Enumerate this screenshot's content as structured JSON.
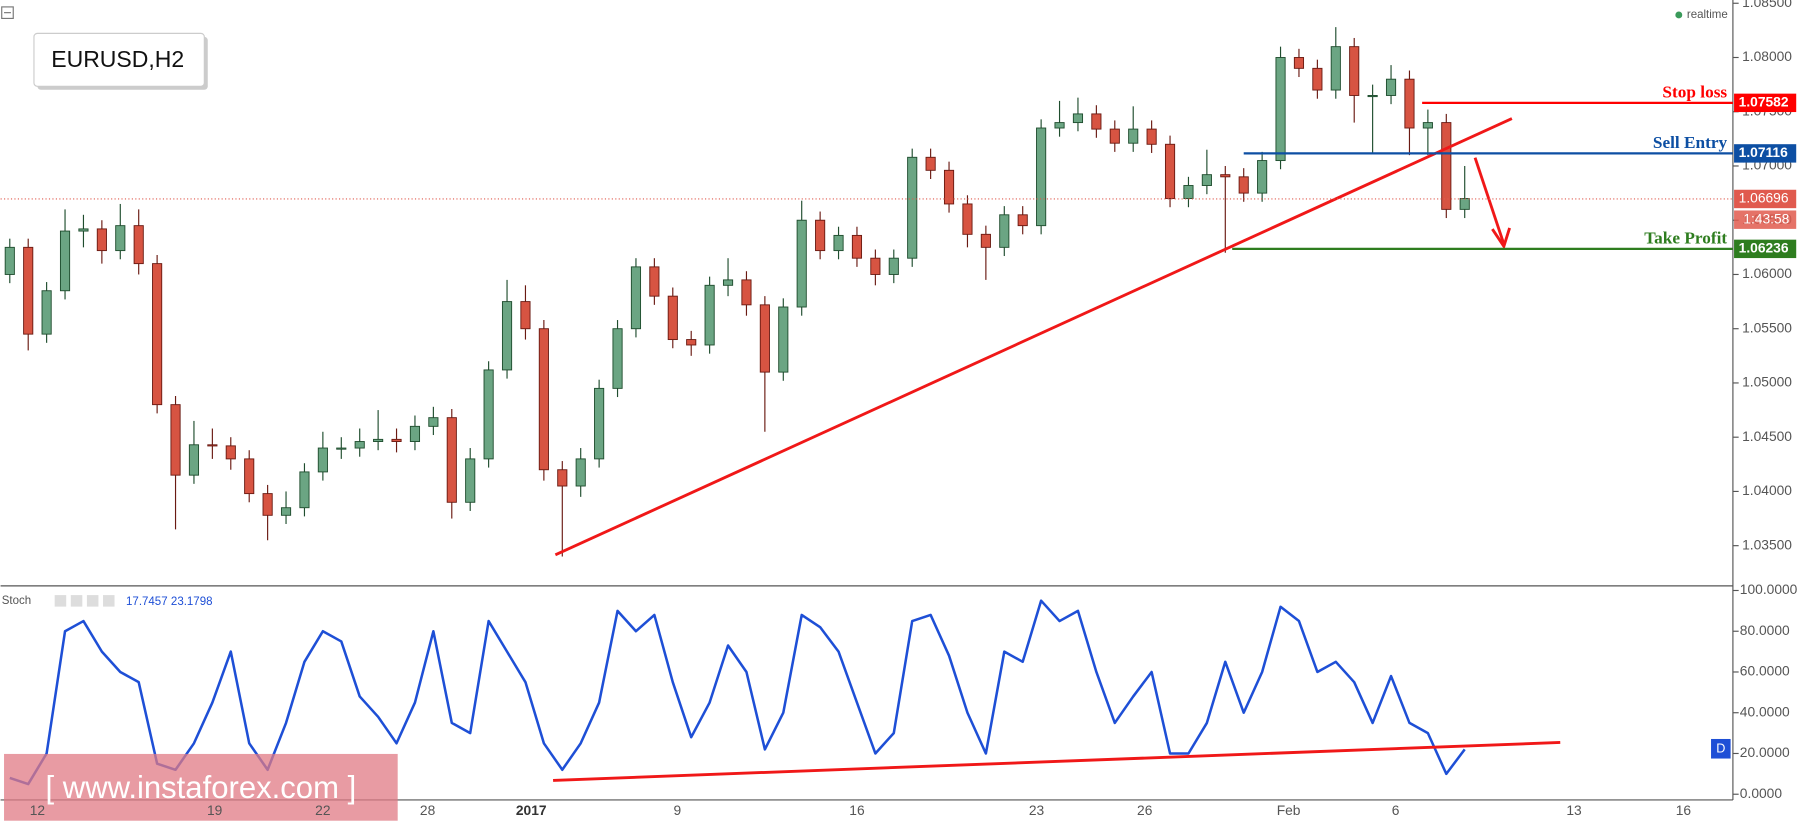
{
  "header": {
    "symbol": "EURUSD,H2",
    "status": "realtime"
  },
  "watermark": "[ www.instaforex.com ]",
  "chart_data": [
    {
      "type": "candlestick",
      "up_color": "#6ba583",
      "down_color": "#d75442",
      "ylim": [
        1.0314,
        1.0853
      ],
      "yticks": [
        {
          "value": 1.035,
          "label": "1.03500"
        },
        {
          "value": 1.04,
          "label": "1.04000"
        },
        {
          "value": 1.045,
          "label": "1.04500"
        },
        {
          "value": 1.05,
          "label": "1.05000"
        },
        {
          "value": 1.055,
          "label": "1.05500"
        },
        {
          "value": 1.06,
          "label": "1.06000"
        },
        {
          "value": 1.065,
          "label": "1.06500"
        },
        {
          "value": 1.07,
          "label": "1.07000"
        },
        {
          "value": 1.075,
          "label": "1.07500"
        },
        {
          "value": 1.08,
          "label": "1.08000"
        },
        {
          "value": 1.085,
          "label": "1.08500"
        }
      ],
      "xlabels": [
        "12",
        "19",
        "22",
        "28",
        "2017",
        "9",
        "16",
        "23",
        "26",
        "Feb",
        "6",
        "13",
        "16"
      ],
      "candles": [
        [
          1.06,
          1.0633,
          1.0592,
          1.0625
        ],
        [
          1.0625,
          1.0633,
          1.053,
          1.0545
        ],
        [
          1.0545,
          1.0593,
          1.0537,
          1.0585
        ],
        [
          1.0585,
          1.066,
          1.0577,
          1.064
        ],
        [
          1.064,
          1.0655,
          1.0625,
          1.0642
        ],
        [
          1.0642,
          1.065,
          1.061,
          1.0622
        ],
        [
          1.0622,
          1.0665,
          1.0614,
          1.0645
        ],
        [
          1.0645,
          1.066,
          1.06,
          1.061
        ],
        [
          1.061,
          1.0618,
          1.0472,
          1.048
        ],
        [
          1.048,
          1.0488,
          1.0365,
          1.0415
        ],
        [
          1.0415,
          1.0465,
          1.0407,
          1.0443
        ],
        [
          1.0443,
          1.0458,
          1.043,
          1.0442
        ],
        [
          1.0442,
          1.045,
          1.042,
          1.043
        ],
        [
          1.043,
          1.0438,
          1.039,
          1.0398
        ],
        [
          1.0398,
          1.0406,
          1.0355,
          1.0378
        ],
        [
          1.0378,
          1.04,
          1.037,
          1.0385
        ],
        [
          1.0385,
          1.0426,
          1.0377,
          1.0418
        ],
        [
          1.0418,
          1.0455,
          1.041,
          1.044
        ],
        [
          1.044,
          1.045,
          1.043,
          1.044
        ],
        [
          1.044,
          1.0458,
          1.0432,
          1.0446
        ],
        [
          1.0446,
          1.0475,
          1.0438,
          1.0448
        ],
        [
          1.0448,
          1.0458,
          1.0436,
          1.0446
        ],
        [
          1.0446,
          1.047,
          1.0438,
          1.046
        ],
        [
          1.046,
          1.0478,
          1.0452,
          1.0468
        ],
        [
          1.0468,
          1.0476,
          1.0375,
          1.039
        ],
        [
          1.039,
          1.044,
          1.0382,
          1.043
        ],
        [
          1.043,
          1.052,
          1.0422,
          1.0512
        ],
        [
          1.0512,
          1.0595,
          1.0504,
          1.0575
        ],
        [
          1.0575,
          1.059,
          1.054,
          1.055
        ],
        [
          1.055,
          1.0558,
          1.041,
          1.042
        ],
        [
          1.042,
          1.0428,
          1.034,
          1.0405
        ],
        [
          1.0405,
          1.044,
          1.0395,
          1.043
        ],
        [
          1.043,
          1.0503,
          1.0422,
          1.0495
        ],
        [
          1.0495,
          1.0558,
          1.0487,
          1.055
        ],
        [
          1.055,
          1.0615,
          1.0542,
          1.0607
        ],
        [
          1.0607,
          1.0615,
          1.0572,
          1.058
        ],
        [
          1.058,
          1.0588,
          1.0532,
          1.054
        ],
        [
          1.054,
          1.0548,
          1.0525,
          1.0535
        ],
        [
          1.0535,
          1.0598,
          1.0527,
          1.059
        ],
        [
          1.059,
          1.0615,
          1.058,
          1.0595
        ],
        [
          1.0595,
          1.0603,
          1.0562,
          1.0572
        ],
        [
          1.0572,
          1.058,
          1.0455,
          1.051
        ],
        [
          1.051,
          1.0578,
          1.0502,
          1.057
        ],
        [
          1.057,
          1.0668,
          1.0562,
          1.065
        ],
        [
          1.065,
          1.0658,
          1.0614,
          1.0622
        ],
        [
          1.0622,
          1.0644,
          1.0614,
          1.0636
        ],
        [
          1.0636,
          1.0644,
          1.0607,
          1.0615
        ],
        [
          1.0615,
          1.0623,
          1.059,
          1.06
        ],
        [
          1.06,
          1.0623,
          1.0592,
          1.0615
        ],
        [
          1.0615,
          1.0716,
          1.0607,
          1.0708
        ],
        [
          1.0708,
          1.0716,
          1.0688,
          1.0696
        ],
        [
          1.0696,
          1.0704,
          1.0657,
          1.0665
        ],
        [
          1.0665,
          1.0673,
          1.0625,
          1.0637
        ],
        [
          1.0637,
          1.0645,
          1.0595,
          1.0625
        ],
        [
          1.0625,
          1.0663,
          1.0617,
          1.0655
        ],
        [
          1.0655,
          1.0663,
          1.0637,
          1.0645
        ],
        [
          1.0645,
          1.0743,
          1.0637,
          1.0735
        ],
        [
          1.0735,
          1.076,
          1.0727,
          1.074
        ],
        [
          1.074,
          1.0763,
          1.0732,
          1.0748
        ],
        [
          1.0748,
          1.0756,
          1.0726,
          1.0734
        ],
        [
          1.0734,
          1.0742,
          1.0713,
          1.0721
        ],
        [
          1.0721,
          1.0755,
          1.0713,
          1.0734
        ],
        [
          1.0734,
          1.0742,
          1.0712,
          1.072
        ],
        [
          1.072,
          1.0728,
          1.0662,
          1.067
        ],
        [
          1.067,
          1.069,
          1.0662,
          1.0682
        ],
        [
          1.0682,
          1.0715,
          1.0674,
          1.0692
        ],
        [
          1.0692,
          1.07,
          1.062,
          1.069
        ],
        [
          1.069,
          1.0698,
          1.0667,
          1.0675
        ],
        [
          1.0675,
          1.0713,
          1.0667,
          1.0705
        ],
        [
          1.0705,
          1.081,
          1.0697,
          1.08
        ],
        [
          1.08,
          1.0808,
          1.0782,
          1.079
        ],
        [
          1.079,
          1.0798,
          1.0762,
          1.077
        ],
        [
          1.077,
          1.0828,
          1.0762,
          1.081
        ],
        [
          1.081,
          1.0818,
          1.074,
          1.0765
        ],
        [
          1.0765,
          1.0775,
          1.0712,
          1.0765
        ],
        [
          1.0765,
          1.0793,
          1.0757,
          1.078
        ],
        [
          1.078,
          1.0788,
          1.071,
          1.0735
        ],
        [
          1.0735,
          1.0752,
          1.071,
          1.074
        ],
        [
          1.074,
          1.0748,
          1.0652,
          1.066
        ],
        [
          1.066,
          1.07,
          1.0652,
          1.067
        ]
      ],
      "levels": [
        {
          "label": "Stop loss",
          "value": 1.07582,
          "color": "#ff0000"
        },
        {
          "label": "Sell Entry",
          "value": 1.07116,
          "color": "#0d4fa3"
        },
        {
          "label": "Take Profit",
          "value": 1.06236,
          "color": "#2e7d1f"
        }
      ],
      "current_price": 1.06696,
      "current_color": "#e05a4e",
      "countdown": "1:43:58"
    },
    {
      "type": "line",
      "name": "Stoch",
      "readouts": [
        17.7457,
        23.1798
      ],
      "color": "#1e4fd6",
      "badge": "D",
      "ylim": [
        0,
        100
      ],
      "yticks": [
        {
          "value": 0,
          "label": "0.0000"
        },
        {
          "value": 20,
          "label": "20.0000"
        },
        {
          "value": 40,
          "label": "40.0000"
        },
        {
          "value": 60,
          "label": "60.0000"
        },
        {
          "value": 80,
          "label": "80.0000"
        },
        {
          "value": 100,
          "label": "100.0000"
        }
      ],
      "values": [
        8,
        5,
        20,
        80,
        85,
        70,
        60,
        55,
        15,
        12,
        25,
        45,
        70,
        25,
        12,
        35,
        65,
        80,
        75,
        48,
        38,
        25,
        45,
        80,
        35,
        30,
        85,
        70,
        55,
        25,
        12,
        25,
        45,
        90,
        80,
        88,
        55,
        28,
        45,
        73,
        60,
        22,
        40,
        88,
        82,
        70,
        45,
        20,
        30,
        85,
        88,
        68,
        40,
        20,
        70,
        65,
        95,
        85,
        90,
        60,
        35,
        48,
        60,
        20,
        20,
        35,
        65,
        40,
        60,
        92,
        85,
        60,
        65,
        55,
        35,
        58,
        35,
        30,
        10,
        22
      ]
    }
  ]
}
